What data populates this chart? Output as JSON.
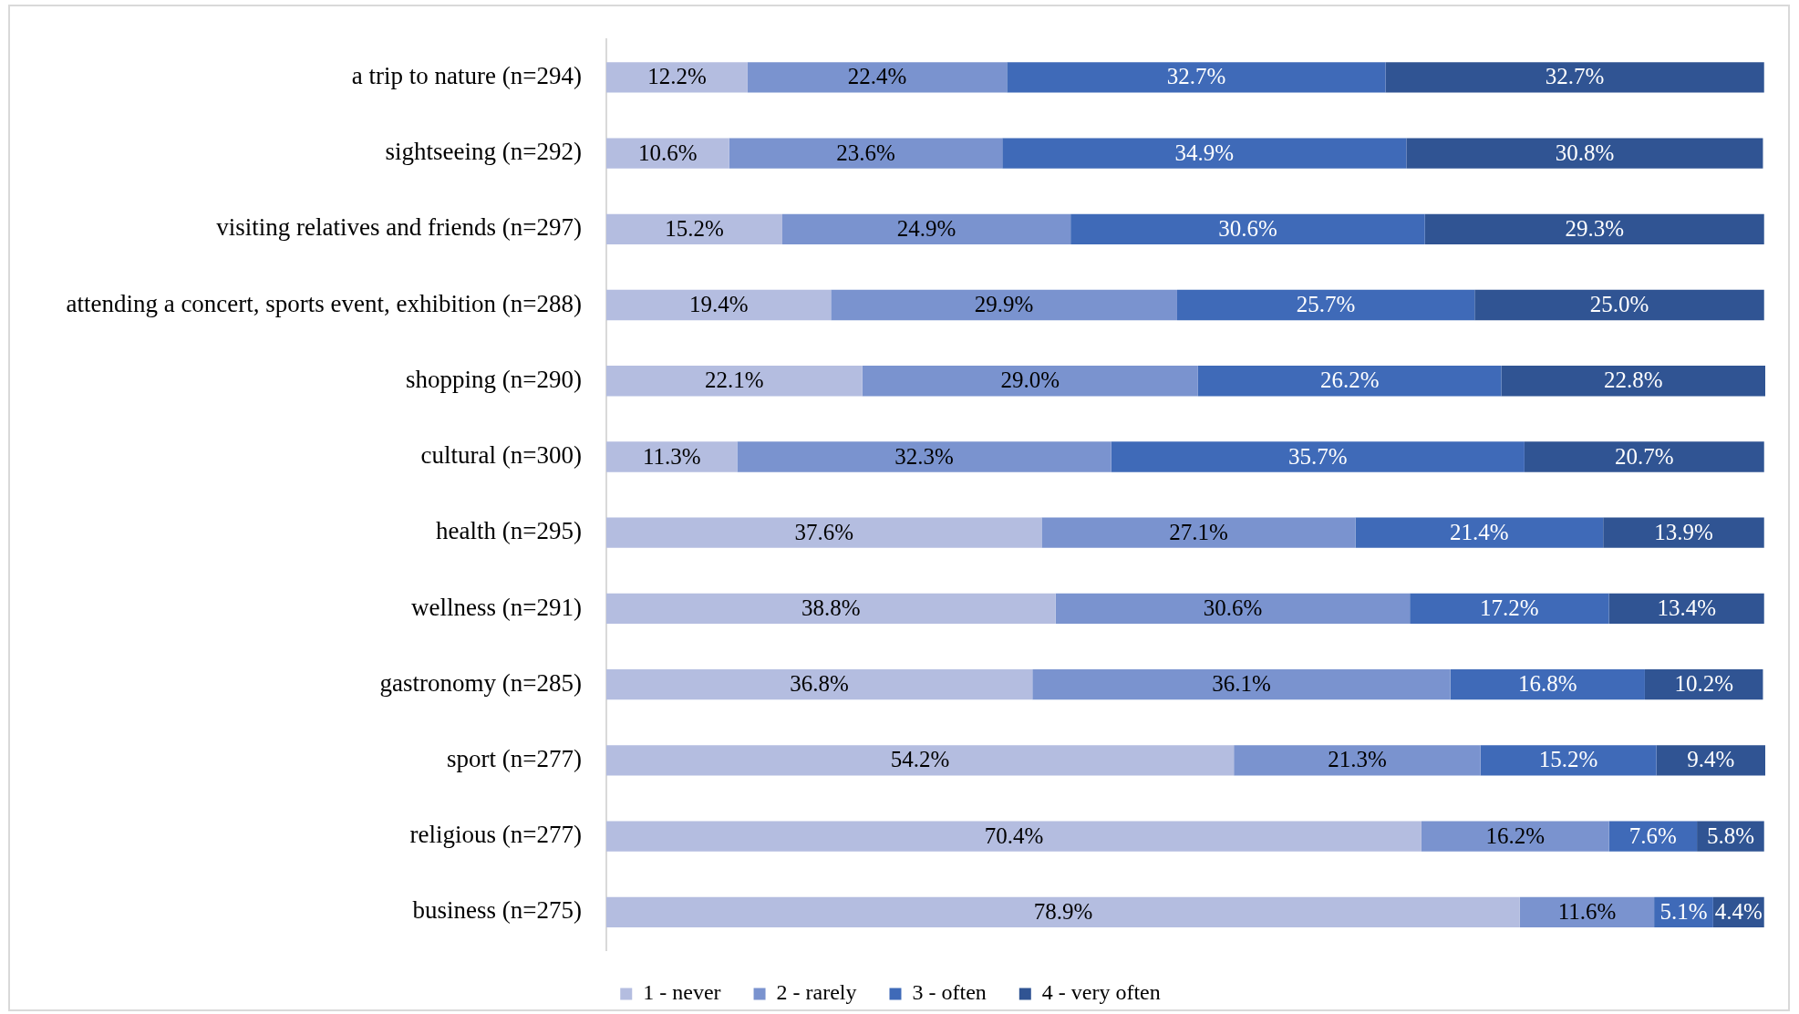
{
  "chart_data": {
    "type": "bar",
    "orientation": "horizontal",
    "stacked": true,
    "legend": "bottom",
    "tick_labels": "y",
    "categories": [
      "a trip to nature (n=294)",
      "sightseeing (n=292)",
      "visiting relatives and friends (n=297)",
      "attending a concert, sports event, exhibition (n=288)",
      "shopping (n=290)",
      "cultural (n=300)",
      "health (n=295)",
      "wellness (n=291)",
      "gastronomy (n=285)",
      "sport (n=277)",
      "religious (n=277)",
      "business (n=275)"
    ],
    "series": [
      {
        "name": "1 - never",
        "color": "#b4bde0",
        "values": [
          12.2,
          10.6,
          15.2,
          19.4,
          22.1,
          11.3,
          37.6,
          38.8,
          36.8,
          54.2,
          70.4,
          78.9
        ],
        "value_labels": [
          "12.2%",
          "10.6%",
          "15.2%",
          "19.4%",
          "22.1%",
          "11.3%",
          "37.6%",
          "38.8%",
          "36.8%",
          "54.2%",
          "70.4%",
          "78.9%"
        ]
      },
      {
        "name": "2 - rarely",
        "color": "#7a93cf",
        "values": [
          22.4,
          23.6,
          24.9,
          29.9,
          29.0,
          32.3,
          27.1,
          30.6,
          36.1,
          21.3,
          16.2,
          11.6
        ],
        "value_labels": [
          "22.4%",
          "23.6%",
          "24.9%",
          "29.9%",
          "29.0%",
          "32.3%",
          "27.1%",
          "30.6%",
          "36.1%",
          "21.3%",
          "16.2%",
          "11.6%"
        ]
      },
      {
        "name": "3 - often",
        "color": "#3f6ab8",
        "values": [
          32.7,
          34.9,
          30.6,
          25.7,
          26.2,
          35.7,
          21.4,
          17.2,
          16.8,
          15.2,
          7.6,
          5.1
        ],
        "value_labels": [
          "32.7%",
          "34.9%",
          "30.6%",
          "25.7%",
          "26.2%",
          "35.7%",
          "21.4%",
          "17.2%",
          "16.8%",
          "15.2%",
          "7.6%",
          "5.1%"
        ]
      },
      {
        "name": "4 - very often",
        "color": "#305493",
        "values": [
          32.7,
          30.8,
          29.3,
          25.0,
          22.8,
          20.7,
          13.9,
          13.4,
          10.2,
          9.4,
          5.8,
          4.4
        ],
        "value_labels": [
          "32.7%",
          "30.8%",
          "29.3%",
          "25.0%",
          "22.8%",
          "20.7%",
          "13.9%",
          "13.4%",
          "10.2%",
          "9.4%",
          "5.8%",
          "4.4%"
        ]
      }
    ]
  }
}
